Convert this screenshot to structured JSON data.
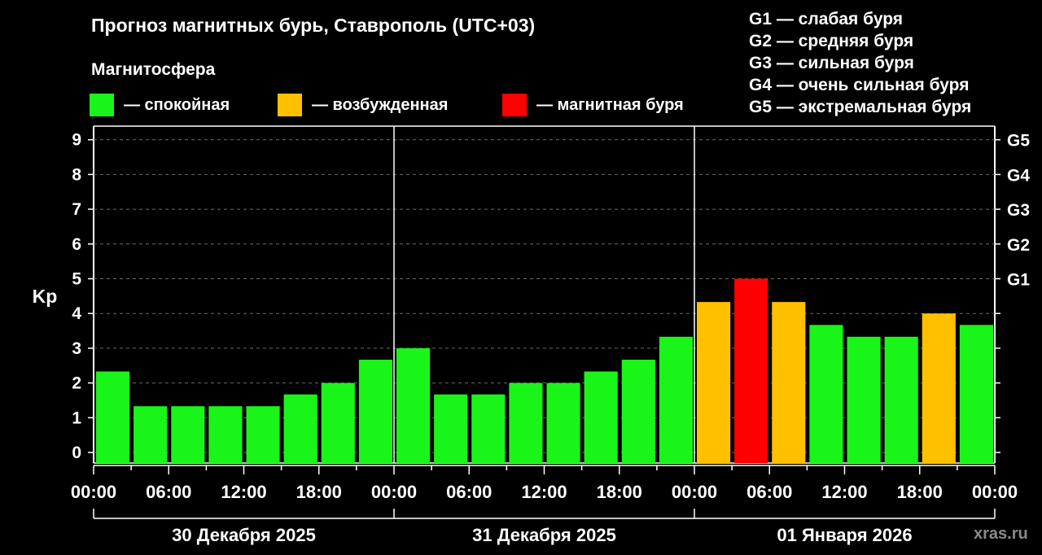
{
  "title": "Прогноз магнитных бурь, Ставрополь (UTC+03)",
  "subtitle": "Магнитосфера",
  "legend": [
    {
      "label": "— спокойная",
      "color": "#19f519"
    },
    {
      "label": "— возбужденная",
      "color": "#ffc000"
    },
    {
      "label": "— магнитная буря",
      "color": "#ff0000"
    }
  ],
  "g_legend": [
    "G1 — слабая буря",
    "G2 — средняя буря",
    "G3 — сильная буря",
    "G4 — очень сильная буря",
    "G5 — экстремальная буря"
  ],
  "watermark": "xras.ru",
  "chart_data": {
    "type": "bar",
    "ylabel": "Kp",
    "ylim": [
      0,
      9
    ],
    "yticks": [
      "0",
      "1",
      "2",
      "3",
      "4",
      "5",
      "6",
      "7",
      "8",
      "9"
    ],
    "right_ticks": [
      {
        "value": 5,
        "label": "G1"
      },
      {
        "value": 6,
        "label": "G2"
      },
      {
        "value": 7,
        "label": "G3"
      },
      {
        "value": 8,
        "label": "G4"
      },
      {
        "value": 9,
        "label": "G5"
      }
    ],
    "grid": "horizontal dashed",
    "xtick_labels": [
      "00:00",
      "06:00",
      "12:00",
      "18:00",
      "00:00",
      "06:00",
      "12:00",
      "18:00",
      "00:00",
      "06:00",
      "12:00",
      "18:00",
      "00:00"
    ],
    "days": [
      "30 Декабря 2025",
      "31 Декабря 2025",
      "01 Января 2026"
    ],
    "interval_hours": 3,
    "values": [
      2.33,
      1.33,
      1.33,
      1.33,
      1.33,
      1.67,
      2.0,
      2.67,
      3.0,
      1.67,
      1.67,
      2.0,
      2.0,
      2.33,
      2.67,
      3.33,
      4.33,
      5.0,
      4.33,
      3.67,
      3.33,
      3.33,
      4.0,
      3.67
    ],
    "colors": {
      "quiet": "#19f519",
      "active": "#ffc000",
      "storm": "#ff0000"
    },
    "thresholds": {
      "active": 4,
      "storm": 5
    }
  }
}
